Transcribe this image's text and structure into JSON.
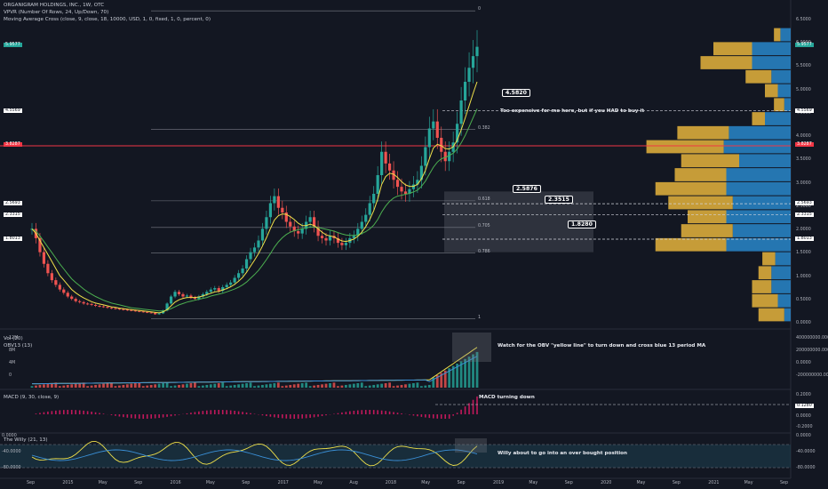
{
  "header": {
    "title": "ORGANIGRAM HOLDINGS, INC., 1W, OTC",
    "vpvr": "VPVR (Number Of Rows, 24, Up/Down, 70)",
    "ma_cross": "Moving Average Cross (close, 9, close, 18, 10000, USD, 1, 0, fixed, 1, 0, percent, 0)"
  },
  "panes": {
    "vol_label": "Vol (20)",
    "obv_label": "OBV13 (13)",
    "macd_label": "MACD (9, 30, close, 9)",
    "willy_label": "The Willy (21, 13)"
  },
  "notes": {
    "expensive": "Too expensive for me here, but if you HAD to buy it",
    "obv": "Watch for the OBV \"yellow line\" to turn down and cross blue 13 period MA",
    "macd": "MACD turning down",
    "willy": "Willy about to go into an over bought position"
  },
  "callouts": [
    {
      "label": "4.5820",
      "value": 4.582
    },
    {
      "label": "2.5876",
      "value": 2.5876
    },
    {
      "label": "2.3515",
      "value": 2.3515
    },
    {
      "label": "1.8280",
      "value": 1.828
    }
  ],
  "fib_levels": [
    {
      "label": "0",
      "value": 6.72
    },
    {
      "label": "0.382",
      "value": 4.18
    },
    {
      "label": "0.618",
      "value": 2.65
    },
    {
      "label": "0.705",
      "value": 2.08
    },
    {
      "label": "0.786",
      "value": 1.53
    },
    {
      "label": "1",
      "value": 0.12
    }
  ],
  "price_tags": [
    {
      "label": "5.9577",
      "value": 5.9577,
      "color": "#26a69a"
    },
    {
      "label": "4.5569",
      "value": 4.5569,
      "color": "#ffffff"
    },
    {
      "label": "3.8287",
      "value": 3.8287,
      "color": "#f23645"
    },
    {
      "label": "2.5693",
      "value": 2.5693,
      "color": "#ffffff"
    },
    {
      "label": "2.3315",
      "value": 2.3315,
      "color": "#ffffff"
    },
    {
      "label": "1.8013",
      "value": 1.8013,
      "color": "#ffffff"
    }
  ],
  "x_axis": {
    "labels": [
      "Sep",
      "2015",
      "May",
      "Sep",
      "2016",
      "May",
      "Sep",
      "2017",
      "May",
      "Aug",
      "2018",
      "May",
      "Sep",
      "2019",
      "May",
      "Sep",
      "2020",
      "May",
      "Sep",
      "2021",
      "May",
      "Sep"
    ]
  },
  "colors": {
    "bg": "#131722",
    "up": "#26a69a",
    "down": "#ef5350",
    "vp_up": "#e6b43c",
    "vp_down": "#2a8fd6",
    "ma_fast": "#f0e14a",
    "ma_slow": "#4caf50",
    "obv": "#f0e14a",
    "obv_ma": "#3a8fd6"
  },
  "chart_data": {
    "type": "candlestick",
    "title": "ORGANIGRAM HOLDINGS, INC., 1W, OTC",
    "y_ticks": [
      "6.5000",
      "6.0000",
      "5.5000",
      "5.0000",
      "4.5000",
      "4.0000",
      "3.5000",
      "3.0000",
      "2.5000",
      "2.0000",
      "1.5000",
      "1.0000",
      "0.5000",
      "0.0000"
    ],
    "ylim": [
      0,
      6.8
    ],
    "close_series": [
      2.05,
      1.85,
      1.55,
      1.3,
      1.1,
      0.95,
      0.85,
      0.75,
      0.68,
      0.6,
      0.55,
      0.5,
      0.48,
      0.45,
      0.44,
      0.42,
      0.4,
      0.39,
      0.38,
      0.36,
      0.35,
      0.34,
      0.33,
      0.32,
      0.31,
      0.3,
      0.29,
      0.28,
      0.27,
      0.26,
      0.25,
      0.22,
      0.24,
      0.3,
      0.45,
      0.6,
      0.7,
      0.65,
      0.6,
      0.62,
      0.58,
      0.55,
      0.6,
      0.65,
      0.7,
      0.75,
      0.78,
      0.72,
      0.8,
      0.85,
      0.9,
      1.0,
      1.1,
      1.2,
      1.4,
      1.55,
      1.65,
      1.8,
      2.05,
      2.3,
      2.6,
      2.75,
      2.5,
      2.4,
      2.2,
      2.1,
      2.0,
      1.95,
      2.05,
      2.2,
      2.3,
      2.1,
      1.9,
      1.85,
      1.8,
      1.9,
      1.85,
      1.75,
      1.7,
      1.75,
      1.85,
      1.9,
      2.05,
      2.2,
      2.35,
      2.6,
      2.8,
      3.2,
      3.7,
      3.45,
      3.3,
      3.1,
      2.95,
      2.85,
      2.8,
      2.9,
      3.0,
      3.1,
      3.4,
      3.8,
      4.2,
      4.35,
      4.0,
      3.7,
      3.5,
      3.7,
      3.9,
      4.3,
      4.8,
      5.2,
      5.5,
      5.75,
      5.95
    ],
    "ma_fast": [
      2.05,
      1.95,
      1.8,
      1.65,
      1.5,
      1.35,
      1.2,
      1.05,
      0.95,
      0.85,
      0.75,
      0.68,
      0.62,
      0.57,
      0.53,
      0.49,
      0.46,
      0.44,
      0.42,
      0.4,
      0.38,
      0.37,
      0.35,
      0.34,
      0.33,
      0.32,
      0.31,
      0.3,
      0.29,
      0.28,
      0.27,
      0.26,
      0.25,
      0.27,
      0.32,
      0.4,
      0.48,
      0.53,
      0.56,
      0.58,
      0.58,
      0.58,
      0.59,
      0.61,
      0.64,
      0.67,
      0.7,
      0.71,
      0.74,
      0.77,
      0.81,
      0.86,
      0.93,
      1.01,
      1.12,
      1.25,
      1.38,
      1.52,
      1.68,
      1.86,
      2.06,
      2.24,
      2.33,
      2.37,
      2.36,
      2.31,
      2.25,
      2.17,
      2.12,
      2.12,
      2.15,
      2.12,
      2.05,
      1.98,
      1.92,
      1.9,
      1.88,
      1.83,
      1.79,
      1.78,
      1.8,
      1.83,
      1.89,
      1.98,
      2.1,
      2.25,
      2.44,
      2.69,
      3.0,
      3.17,
      3.24,
      3.22,
      3.15,
      3.06,
      2.99,
      2.96,
      2.96,
      3.0,
      3.12,
      3.3,
      3.55,
      3.78,
      3.86,
      3.83,
      3.77,
      3.76,
      3.81,
      3.95,
      4.17,
      4.42,
      4.69,
      4.95,
      5.2
    ],
    "ma_slow": [
      2.05,
      2.0,
      1.9,
      1.78,
      1.66,
      1.54,
      1.42,
      1.3,
      1.19,
      1.08,
      0.98,
      0.9,
      0.83,
      0.76,
      0.7,
      0.65,
      0.6,
      0.56,
      0.52,
      0.49,
      0.46,
      0.44,
      0.42,
      0.4,
      0.38,
      0.36,
      0.35,
      0.34,
      0.33,
      0.32,
      0.31,
      0.3,
      0.29,
      0.29,
      0.31,
      0.34,
      0.38,
      0.42,
      0.45,
      0.48,
      0.5,
      0.52,
      0.54,
      0.56,
      0.58,
      0.61,
      0.63,
      0.65,
      0.67,
      0.7,
      0.73,
      0.76,
      0.8,
      0.85,
      0.91,
      0.99,
      1.07,
      1.16,
      1.27,
      1.39,
      1.52,
      1.66,
      1.77,
      1.86,
      1.93,
      1.98,
      2.01,
      2.03,
      2.05,
      2.07,
      2.09,
      2.09,
      2.08,
      2.06,
      2.04,
      2.02,
      2.0,
      1.97,
      1.94,
      1.92,
      1.91,
      1.91,
      1.92,
      1.95,
      1.99,
      2.05,
      2.13,
      2.25,
      2.41,
      2.54,
      2.64,
      2.71,
      2.75,
      2.77,
      2.79,
      2.81,
      2.84,
      2.88,
      2.96,
      3.07,
      3.22,
      3.37,
      3.48,
      3.55,
      3.58,
      3.62,
      3.67,
      3.76,
      3.89,
      4.05,
      4.24,
      4.43,
      4.62
    ],
    "vp_rows": [
      {
        "price": 0.2,
        "up": 0.2,
        "down": 0.05
      },
      {
        "price": 0.5,
        "up": 0.2,
        "down": 0.1
      },
      {
        "price": 0.8,
        "up": 0.15,
        "down": 0.15
      },
      {
        "price": 1.1,
        "up": 0.1,
        "down": 0.15
      },
      {
        "price": 1.4,
        "up": 0.1,
        "down": 0.12
      },
      {
        "price": 1.7,
        "up": 0.55,
        "down": 0.5
      },
      {
        "price": 2.0,
        "up": 0.4,
        "down": 0.45
      },
      {
        "price": 2.3,
        "up": 0.3,
        "down": 0.5
      },
      {
        "price": 2.6,
        "up": 0.5,
        "down": 0.45
      },
      {
        "price": 2.9,
        "up": 0.55,
        "down": 0.5
      },
      {
        "price": 3.2,
        "up": 0.4,
        "down": 0.5
      },
      {
        "price": 3.5,
        "up": 0.45,
        "down": 0.4
      },
      {
        "price": 3.8,
        "up": 0.6,
        "down": 0.52
      },
      {
        "price": 4.1,
        "up": 0.4,
        "down": 0.48
      },
      {
        "price": 4.4,
        "up": 0.1,
        "down": 0.2
      },
      {
        "price": 4.7,
        "up": 0.08,
        "down": 0.05
      },
      {
        "price": 5.0,
        "up": 0.1,
        "down": 0.1
      },
      {
        "price": 5.3,
        "up": 0.2,
        "down": 0.15
      },
      {
        "price": 5.6,
        "up": 0.4,
        "down": 0.3
      },
      {
        "price": 5.9,
        "up": 0.3,
        "down": 0.3
      },
      {
        "price": 6.2,
        "up": 0.05,
        "down": 0.08
      }
    ],
    "vol_ticks": [
      "12M",
      "8M",
      "4M",
      "0"
    ],
    "obv_ticks": [
      "400000000.0000",
      "200000000.0000",
      "0.0000",
      "-200000000.0000"
    ],
    "macd_ticks": [
      "0.2000",
      "0.1280",
      "0.0000",
      "-0.2000"
    ],
    "willy_ticks": [
      "0.0000",
      "-40.0000",
      "-80.0000"
    ]
  }
}
